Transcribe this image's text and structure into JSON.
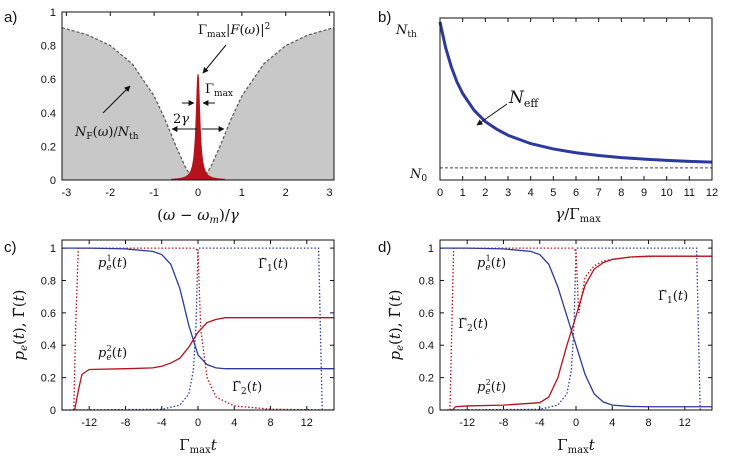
{
  "colors": {
    "red": "#b5121b",
    "blue": "#2b3a9b",
    "gray_fill": "#c8c8c8",
    "gray_line": "#555555"
  },
  "chart_data": [
    {
      "id": "a",
      "panel_label": "a)",
      "type": "area",
      "xlabel": "(ω − ω_m)/γ",
      "xlim": [
        -3.1,
        3.1
      ],
      "ylim": [
        0,
        1
      ],
      "xticks": [
        -3,
        -2,
        -1,
        0,
        1,
        2,
        3
      ],
      "yticks": [
        0,
        0.2,
        0.4,
        0.6,
        0.8,
        1
      ],
      "ytick_labels": [
        "0",
        "0.2",
        "0.4",
        "0.6",
        "0.8",
        "1"
      ],
      "background_curve": {
        "label": "N_F(ω)/N_th",
        "x": [
          -3.1,
          -3,
          -2.5,
          -2,
          -1.5,
          -1,
          -0.75,
          -0.5,
          -0.3,
          -0.2,
          -0.1,
          0,
          0.1,
          0.2,
          0.3,
          0.5,
          0.75,
          1,
          1.5,
          2,
          2.5,
          3,
          3.1
        ],
        "y": [
          0.906,
          0.9,
          0.862,
          0.8,
          0.692,
          0.5,
          0.36,
          0.2,
          0.083,
          0.038,
          0.01,
          0,
          0.01,
          0.038,
          0.083,
          0.2,
          0.36,
          0.5,
          0.692,
          0.8,
          0.862,
          0.9,
          0.906
        ]
      },
      "peak": {
        "label": "Γ_max|F(ω)|²",
        "height": 0.63,
        "halfwidth": 0.05
      },
      "annotations": {
        "width_label": "2γ",
        "peak_label": "Γ_max",
        "curve_label": "N_F(ω)/N_th"
      }
    },
    {
      "id": "b",
      "panel_label": "b)",
      "type": "line",
      "xlabel": "γ/Γ_max",
      "xlim": [
        0,
        12
      ],
      "xticks": [
        0,
        1,
        2,
        3,
        4,
        5,
        6,
        7,
        8,
        9,
        10,
        11,
        12
      ],
      "ytick_labels": [
        "N_th",
        "N_0"
      ],
      "series": [
        {
          "name": "N_eff",
          "x": [
            0,
            0.25,
            0.5,
            0.75,
            1,
            1.5,
            2,
            2.5,
            3,
            4,
            5,
            6,
            7,
            8,
            9,
            10,
            11,
            12
          ],
          "y": [
            1,
            0.83,
            0.705,
            0.605,
            0.53,
            0.42,
            0.345,
            0.295,
            0.255,
            0.2,
            0.165,
            0.14,
            0.122,
            0.108,
            0.098,
            0.09,
            0.083,
            0.078
          ]
        }
      ],
      "baseline": {
        "name": "N_0",
        "y": 0.04
      },
      "annotations": {
        "curve_label": "N_eff"
      }
    },
    {
      "id": "c",
      "panel_label": "c)",
      "type": "line",
      "xlabel": "Γ_max t",
      "ylabel": "p_e(t), Γ̃(t)",
      "xlim": [
        -15,
        15
      ],
      "ylim": [
        0,
        1.05
      ],
      "xticks": [
        -12,
        -8,
        -4,
        0,
        4,
        8,
        12
      ],
      "xtick_labels": [
        "-12",
        "-8",
        "-4",
        "0",
        "4",
        "8",
        "12"
      ],
      "yticks": [
        0,
        0.2,
        0.4,
        0.6,
        0.8,
        1
      ],
      "ytick_labels": [
        "0",
        "0.2",
        "0.4",
        "0.6",
        "0.8",
        "1"
      ],
      "series": [
        {
          "name": "p_e^1(t)",
          "color": "blue",
          "style": "solid",
          "x": [
            -15,
            -12,
            -8,
            -5,
            -4,
            -3,
            -2,
            -1,
            0,
            1,
            2,
            3,
            4,
            8,
            12,
            15
          ],
          "y": [
            1,
            1,
            0.995,
            0.98,
            0.96,
            0.9,
            0.75,
            0.52,
            0.34,
            0.28,
            0.26,
            0.255,
            0.255,
            0.255,
            0.255,
            0.255
          ]
        },
        {
          "name": "p_e^2(t)",
          "color": "red",
          "style": "solid",
          "x": [
            -13.6,
            -13.2,
            -12.8,
            -12,
            -8,
            -5,
            -4,
            -3,
            -2,
            -1,
            0,
            1,
            2,
            3,
            4,
            8,
            12,
            15
          ],
          "y": [
            0,
            0.12,
            0.22,
            0.25,
            0.255,
            0.26,
            0.27,
            0.29,
            0.32,
            0.39,
            0.48,
            0.54,
            0.56,
            0.57,
            0.57,
            0.57,
            0.57,
            0.57
          ]
        },
        {
          "name": "Γ̃_1(t)",
          "color": "blue",
          "style": "dotted",
          "x": [
            -15,
            -4,
            -2,
            -1,
            -0.5,
            -0.2,
            0,
            0.3,
            1,
            3,
            6,
            10,
            13.3,
            13.5,
            13.7
          ],
          "y": [
            0,
            0.004,
            0.03,
            0.1,
            0.25,
            0.55,
            1,
            1,
            1,
            1,
            1,
            1,
            1,
            0.5,
            0
          ]
        },
        {
          "name": "Γ̃_2(t)",
          "color": "red",
          "style": "dotted",
          "x": [
            -13.7,
            -13.5,
            -13.2,
            -10,
            -4,
            -1,
            -0.3,
            0,
            0.3,
            1,
            2,
            4,
            8,
            15
          ],
          "y": [
            0,
            0.5,
            1,
            1,
            1,
            1,
            1,
            0.98,
            0.5,
            0.2,
            0.08,
            0.025,
            0.005,
            0
          ]
        }
      ],
      "series_labels": [
        "p_e^1(t)",
        "p_e^2(t)",
        "Γ̃_1(t)",
        "Γ̃_2(t)"
      ]
    },
    {
      "id": "d",
      "panel_label": "d)",
      "type": "line",
      "xlabel": "Γ_max t",
      "ylabel": "p_e(t), Γ̃(t)",
      "xlim": [
        -15,
        15
      ],
      "ylim": [
        0,
        1.05
      ],
      "xticks": [
        -12,
        -8,
        -4,
        0,
        4,
        8,
        12
      ],
      "xtick_labels": [
        "-12",
        "-8",
        "-4",
        "0",
        "4",
        "8",
        "12"
      ],
      "yticks": [
        0,
        0.2,
        0.4,
        0.6,
        0.8,
        1
      ],
      "ytick_labels": [
        "0",
        "0.2",
        "0.4",
        "0.6",
        "0.8",
        "1"
      ],
      "series": [
        {
          "name": "p_e^1(t)",
          "color": "blue",
          "style": "solid",
          "x": [
            -15,
            -12,
            -8,
            -5,
            -4,
            -3,
            -2,
            -1,
            0,
            1,
            2,
            3,
            4,
            6,
            8,
            12,
            15
          ],
          "y": [
            1,
            1,
            0.995,
            0.98,
            0.96,
            0.9,
            0.76,
            0.58,
            0.4,
            0.22,
            0.1,
            0.05,
            0.03,
            0.022,
            0.02,
            0.02,
            0.02
          ]
        },
        {
          "name": "p_e^2(t)",
          "color": "red",
          "style": "solid",
          "x": [
            -13.6,
            -13.3,
            -12,
            -8,
            -4,
            -3,
            -2,
            -1,
            0,
            1,
            2,
            3,
            4,
            6,
            8,
            12,
            15
          ],
          "y": [
            0,
            0.02,
            0.025,
            0.03,
            0.045,
            0.08,
            0.2,
            0.4,
            0.58,
            0.77,
            0.87,
            0.91,
            0.93,
            0.945,
            0.95,
            0.95,
            0.95
          ]
        },
        {
          "name": "Γ̃_1(t)",
          "color": "blue",
          "style": "dotted",
          "x": [
            -15,
            -4,
            -2,
            -1,
            -0.5,
            -0.2,
            0,
            0.3,
            1,
            3,
            6,
            10,
            13.3,
            13.5,
            13.7
          ],
          "y": [
            0,
            0.004,
            0.03,
            0.1,
            0.25,
            0.55,
            1,
            1,
            1,
            1,
            1,
            1,
            1,
            0.5,
            0
          ]
        },
        {
          "name": "Γ̃_2(t)",
          "color": "red",
          "style": "dotted",
          "x": [
            -13.9,
            -13.7,
            -13.5,
            -10,
            -4,
            -1,
            -0.3,
            0,
            0.3,
            1,
            2,
            3,
            4,
            6,
            10,
            15
          ],
          "y": [
            0,
            0.5,
            1,
            1,
            1,
            1,
            1,
            0.98,
            0.6,
            0.82,
            0.89,
            0.92,
            0.93,
            0.945,
            0.95,
            0.95
          ]
        }
      ],
      "series_labels": [
        "p_e^1(t)",
        "p_e^2(t)",
        "Γ̃_1(t)",
        "Γ̃_2(t)"
      ]
    }
  ]
}
